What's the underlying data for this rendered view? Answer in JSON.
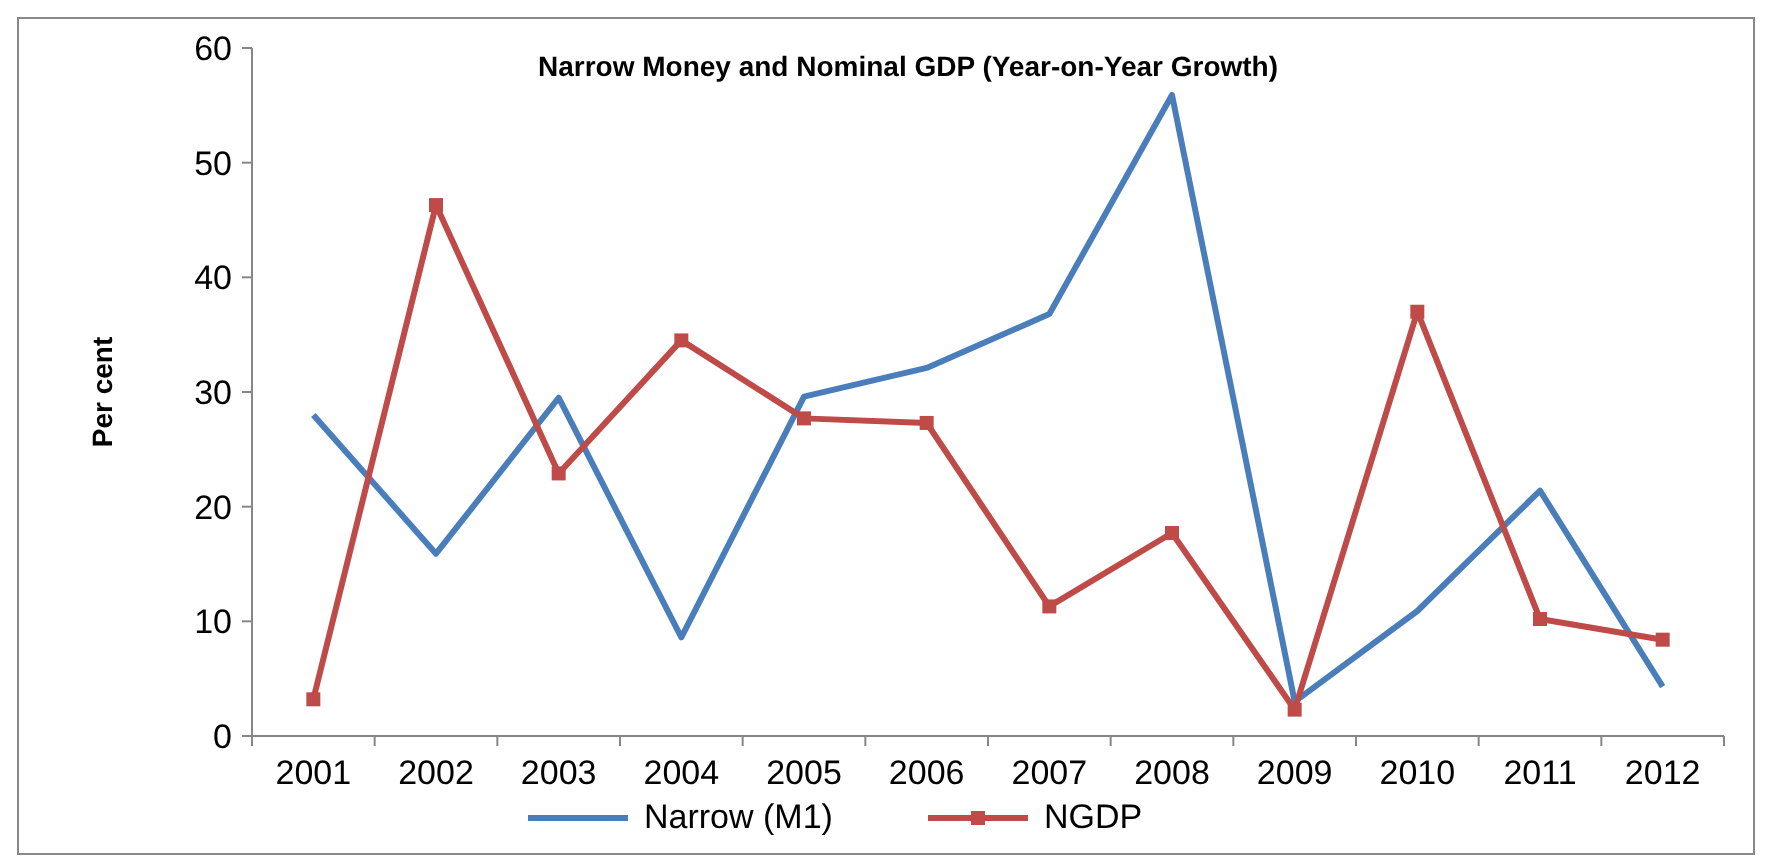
{
  "chart_data": {
    "type": "line",
    "title": "Narrow Money and Nominal GDP (Year-on-Year Growth)",
    "ylabel": "Per cent",
    "categories": [
      "2001",
      "2002",
      "2003",
      "2004",
      "2005",
      "2006",
      "2007",
      "2008",
      "2009",
      "2010",
      "2011",
      "2012"
    ],
    "series": [
      {
        "name": "Narrow (M1)",
        "color": "#4a7ebb",
        "marker": "none",
        "values": [
          28,
          15.9,
          29.5,
          8.6,
          29.6,
          32.1,
          36.8,
          55.9,
          3,
          10.9,
          21.4,
          4.3
        ]
      },
      {
        "name": "NGDP",
        "color": "#be4b48",
        "marker": "square",
        "values": [
          3.2,
          46.3,
          22.9,
          34.5,
          27.7,
          27.3,
          11.3,
          17.7,
          2.3,
          37,
          10.2,
          8.4
        ]
      }
    ],
    "ylim": [
      0,
      60
    ],
    "yticks": [
      0,
      10,
      20,
      30,
      40,
      50,
      60
    ],
    "grid": false,
    "legend": "bottom"
  }
}
